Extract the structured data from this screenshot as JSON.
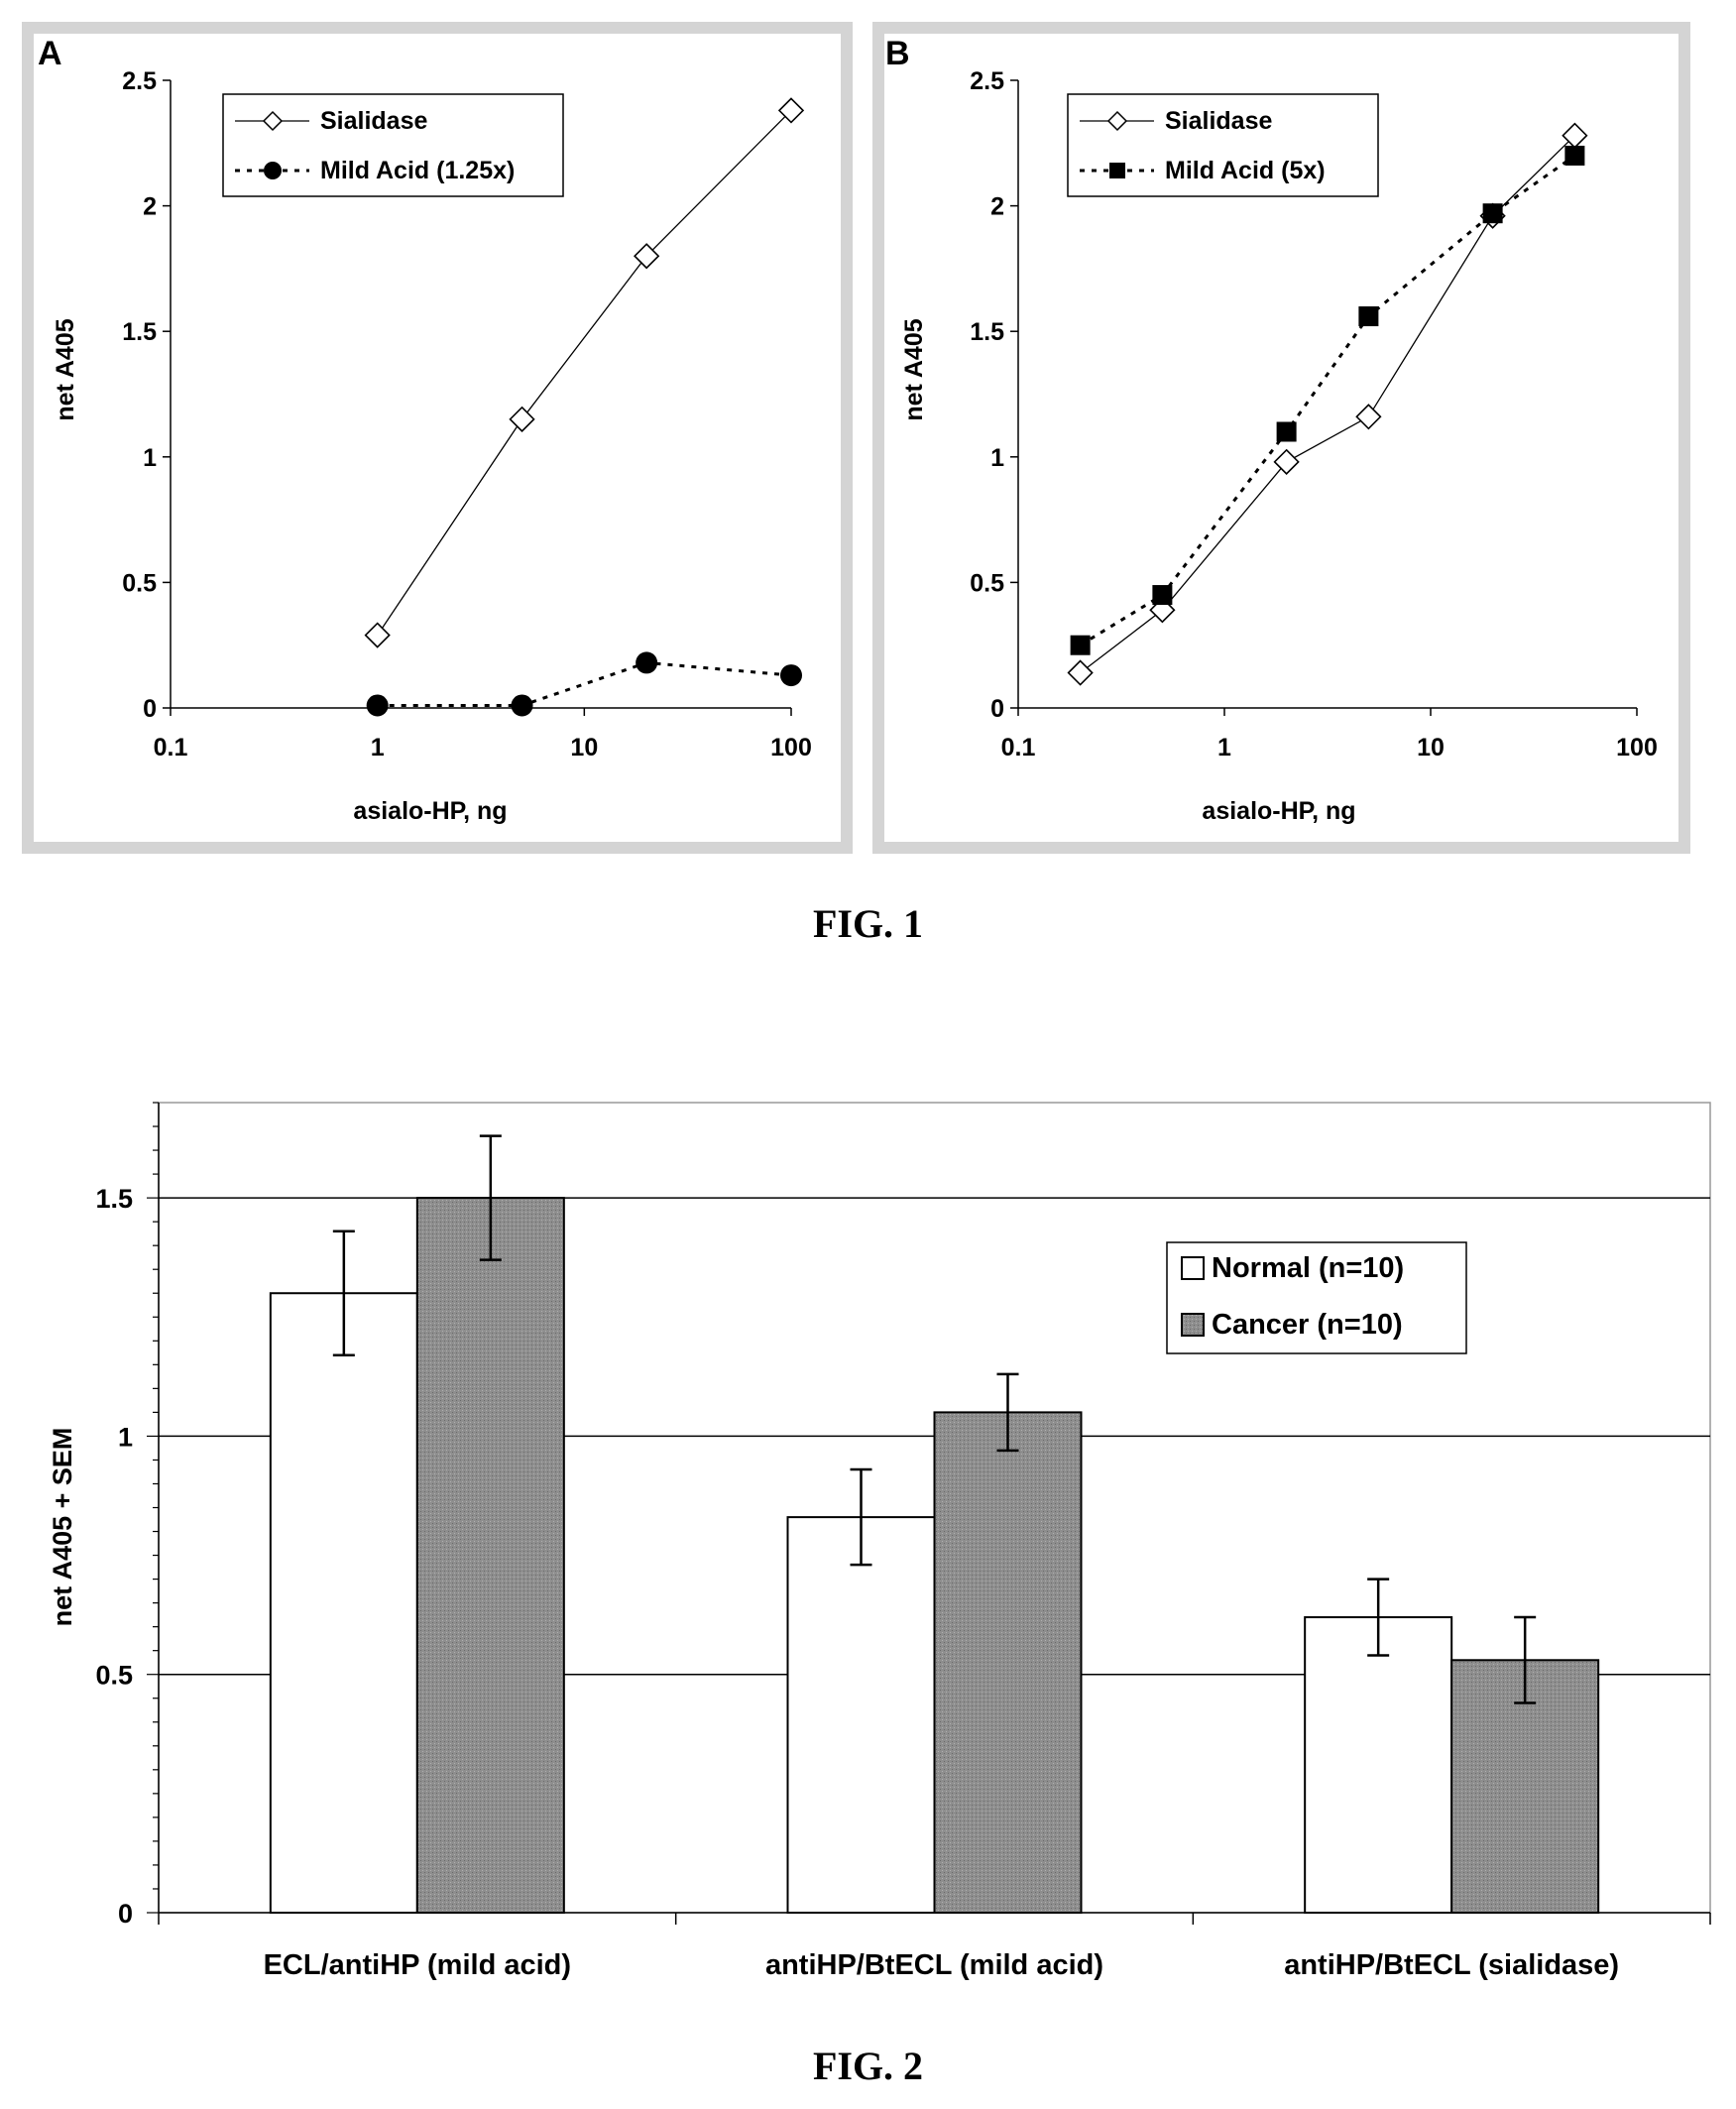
{
  "figures": {
    "fig1_caption": "FIG. 1",
    "fig2_caption": "FIG. 2"
  },
  "chart_data": [
    {
      "id": "panel-a",
      "type": "line",
      "panel_label": "A",
      "xlabel": "asialo-HP, ng",
      "ylabel": "net A405",
      "xscale": "log",
      "xlim": [
        0.1,
        100
      ],
      "ylim": [
        0,
        2.5
      ],
      "xticks": [
        "0.1",
        "1",
        "10",
        "100"
      ],
      "yticks": [
        "0",
        "0.5",
        "1",
        "1.5",
        "2",
        "2.5"
      ],
      "legend_position": "top-left",
      "series": [
        {
          "name": "Sialidase",
          "style": "solid",
          "marker": "open-diamond",
          "x": [
            1,
            5,
            20,
            100
          ],
          "y": [
            0.29,
            1.15,
            1.8,
            2.38
          ]
        },
        {
          "name": "Mild Acid (1.25x)",
          "style": "dotted",
          "marker": "filled-circle",
          "x": [
            1,
            5,
            20,
            100
          ],
          "y": [
            0.01,
            0.01,
            0.18,
            0.13
          ]
        }
      ]
    },
    {
      "id": "panel-b",
      "type": "line",
      "panel_label": "B",
      "xlabel": "asialo-HP, ng",
      "ylabel": "net A405",
      "xscale": "log",
      "xlim": [
        0.1,
        100
      ],
      "ylim": [
        0,
        2.5
      ],
      "xticks": [
        "0.1",
        "1",
        "10",
        "100"
      ],
      "yticks": [
        "0",
        "0.5",
        "1",
        "1.5",
        "2",
        "2.5"
      ],
      "legend_position": "top-left",
      "series": [
        {
          "name": "Sialidase",
          "style": "solid",
          "marker": "open-diamond",
          "x": [
            0.2,
            0.5,
            2,
            5,
            20,
            50
          ],
          "y": [
            0.14,
            0.39,
            0.98,
            1.16,
            1.96,
            2.28
          ]
        },
        {
          "name": "Mild Acid (5x)",
          "style": "dotted",
          "marker": "filled-square",
          "x": [
            0.2,
            0.5,
            2,
            5,
            20,
            50
          ],
          "y": [
            0.25,
            0.45,
            1.1,
            1.56,
            1.97,
            2.2
          ]
        }
      ]
    },
    {
      "id": "fig2",
      "type": "bar",
      "xlabel": "",
      "ylabel": "net A405 + SEM",
      "ylim": [
        0,
        1.7
      ],
      "yticks": [
        "0",
        "0.5",
        "1",
        "1.5"
      ],
      "grid": true,
      "legend_position": "right",
      "categories": [
        "ECL/antiHP (mild acid)",
        "antiHP/BtECL (mild acid)",
        "antiHP/BtECL (sialidase)"
      ],
      "series": [
        {
          "name": "Normal (n=10)",
          "color": "#ffffff",
          "values": [
            1.3,
            0.83,
            0.62
          ],
          "errors": [
            0.13,
            0.1,
            0.08
          ]
        },
        {
          "name": "Cancer (n=10)",
          "color": "#8e8e8e",
          "values": [
            1.5,
            1.05,
            0.53
          ],
          "errors": [
            0.13,
            0.08,
            0.09
          ]
        }
      ]
    }
  ]
}
